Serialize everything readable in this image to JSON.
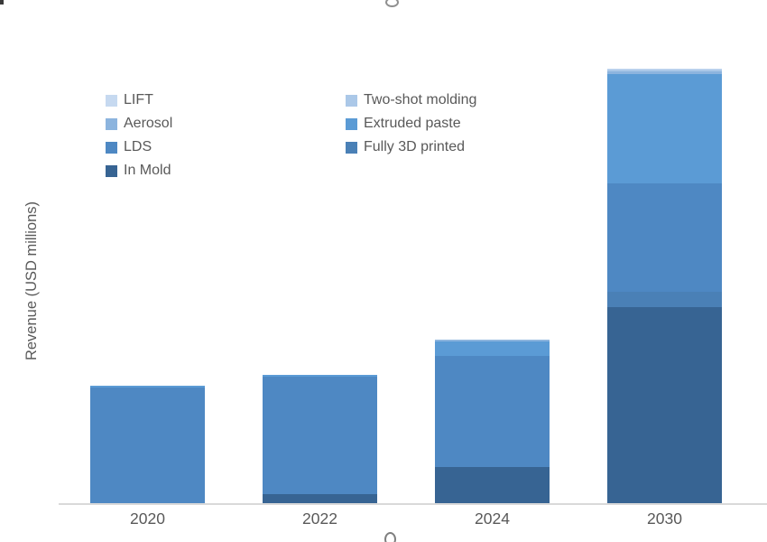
{
  "ui": {
    "background_color": "#ffffff",
    "text_color": "#595959",
    "axis_line_color": "#d9d9d9",
    "artifacts": {
      "top_left_fragment": "tiny dark cropped mark in extreme top-left corner",
      "top_center_fragment": "bottom sliver of a cut-off letter from a title cropped above the image",
      "bottom_center_fragment": "top sliver of a cut-off letter from a label cropped below the image"
    }
  },
  "chart_data": {
    "type": "bar",
    "stacked": true,
    "title": "",
    "xlabel": "",
    "ylabel": "Revenue (USD millions)",
    "categories": [
      "2020",
      "2022",
      "2024",
      "2030"
    ],
    "series": [
      {
        "name": "LIFT",
        "color": "#c6d9f0",
        "values": [
          0,
          0,
          0,
          1
        ]
      },
      {
        "name": "Two-shot molding",
        "color": "#abc8e8",
        "values": [
          0,
          0,
          0,
          2
        ]
      },
      {
        "name": "Aerosol",
        "color": "#8cb4de",
        "values": [
          0,
          0,
          2,
          3
        ]
      },
      {
        "name": "Extruded paste",
        "color": "#5b9bd5",
        "values": [
          2,
          2,
          16,
          121
        ]
      },
      {
        "name": "LDS",
        "color": "#4e88c3",
        "values": [
          128,
          130,
          123,
          120
        ]
      },
      {
        "name": "Fully 3D printed",
        "color": "#4a80b6",
        "values": [
          0,
          0,
          0,
          17
        ]
      },
      {
        "name": "In Mold",
        "color": "#376493",
        "values": [
          0,
          10,
          40,
          217
        ]
      }
    ],
    "stack_order_bottom_up": [
      "In Mold",
      "Fully 3D printed",
      "LDS",
      "Extruded paste",
      "Aerosol",
      "Two-shot molding",
      "LIFT"
    ],
    "totals_estimated": [
      130,
      142,
      181,
      481
    ],
    "y_axis": {
      "tick_labels_visible": false,
      "gridlines": false,
      "ylim": [
        0,
        500
      ],
      "units": "estimated relative units (no scale shown on axis)"
    },
    "legend": {
      "position": "inside-top-left",
      "columns": [
        [
          "LIFT",
          "Aerosol",
          "LDS",
          "In Mold"
        ],
        [
          "Two-shot molding",
          "Extruded paste",
          "Fully 3D printed"
        ]
      ]
    }
  }
}
